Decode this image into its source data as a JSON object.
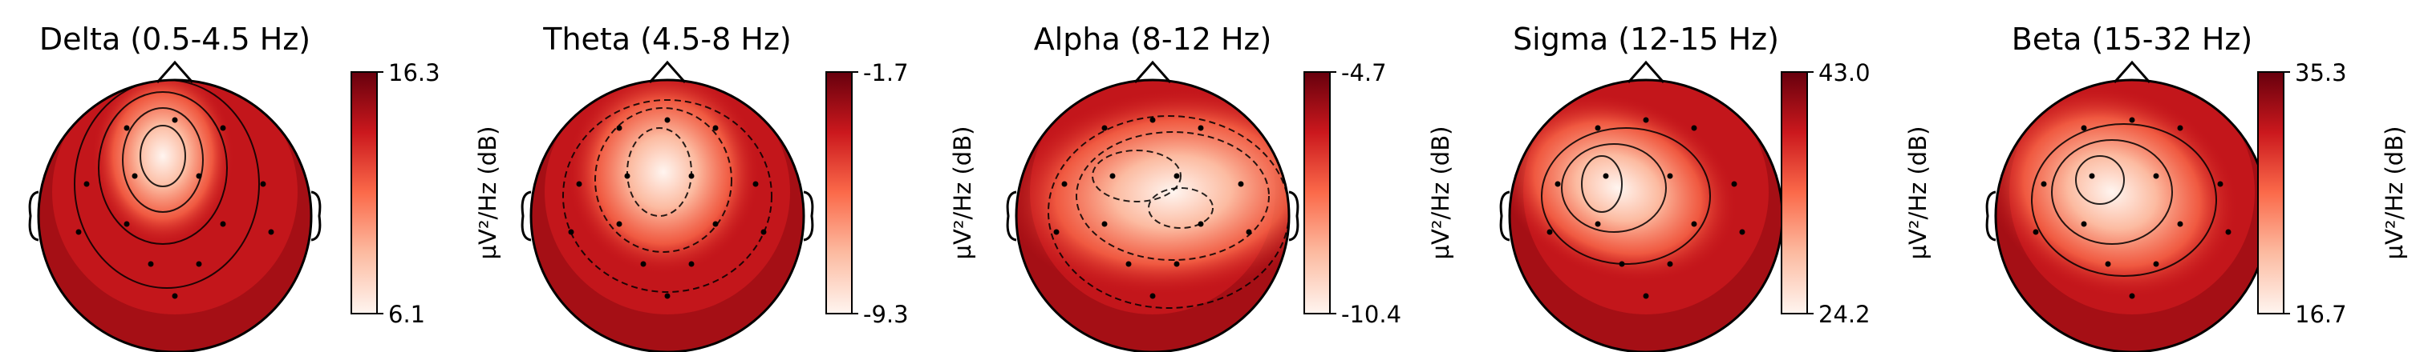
{
  "chart_data": [
    {
      "type": "heatmap",
      "title": "Delta (0.5-4.5 Hz)",
      "colorbar": {
        "label": "µV²/Hz (dB)",
        "max_label": "16.3",
        "min_label": "6.1",
        "range": [
          6.1,
          16.3
        ]
      },
      "colormap": "Reds"
    },
    {
      "type": "heatmap",
      "title": "Theta (4.5-8 Hz)",
      "colorbar": {
        "label": "µV²/Hz (dB)",
        "max_label": "-1.7",
        "min_label": "-9.3",
        "range": [
          -9.3,
          -1.7
        ]
      },
      "colormap": "Reds"
    },
    {
      "type": "heatmap",
      "title": "Alpha (8-12 Hz)",
      "colorbar": {
        "label": "µV²/Hz (dB)",
        "max_label": "-4.7",
        "min_label": "-10.4",
        "range": [
          -10.4,
          -4.7
        ]
      },
      "colormap": "Reds"
    },
    {
      "type": "heatmap",
      "title": "Sigma (12-15 Hz)",
      "colorbar": {
        "label": "µV²/Hz (dB)",
        "max_label": "43.0",
        "min_label": "24.2",
        "range": [
          24.2,
          43.0
        ]
      },
      "colormap": "Reds"
    },
    {
      "type": "heatmap",
      "title": "Beta (15-32 Hz)",
      "colorbar": {
        "label": "µV²/Hz (dB)",
        "max_label": "35.3",
        "min_label": "16.7",
        "range": [
          16.7,
          35.3
        ]
      },
      "colormap": "Reds"
    }
  ]
}
